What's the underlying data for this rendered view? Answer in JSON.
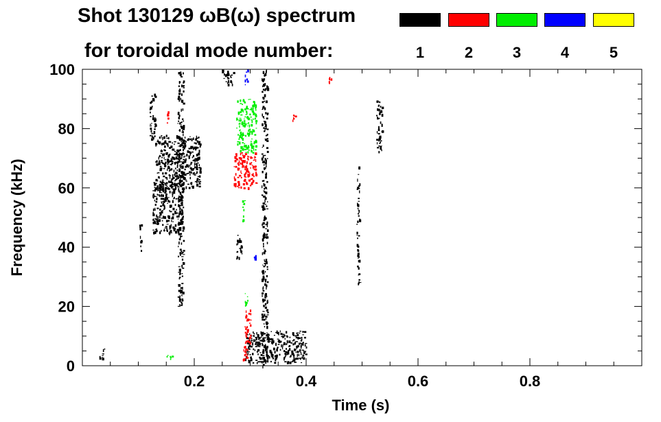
{
  "chart_data": {
    "type": "scatter",
    "title_line_1": "Shot 130129 ωB(ω) spectrum",
    "title_line_2": "for toroidal mode number:",
    "xlabel": "Time (s)",
    "ylabel": "Frequency (kHz)",
    "xlim": [
      0.0,
      1.0
    ],
    "ylim": [
      0,
      100
    ],
    "x_ticks": [
      0.2,
      0.4,
      0.6,
      0.8
    ],
    "x_tick_labels": [
      "0.2",
      "0.4",
      "0.6",
      "0.8"
    ],
    "y_ticks": [
      0,
      20,
      40,
      60,
      80,
      100
    ],
    "y_tick_labels": [
      "0",
      "20",
      "40",
      "60",
      "80",
      "100"
    ],
    "grid": false,
    "legend_position": "top-right",
    "legend": [
      {
        "label": "1",
        "color": "#000000"
      },
      {
        "label": "2",
        "color": "#ff0000"
      },
      {
        "label": "3",
        "color": "#00ee00"
      },
      {
        "label": "4",
        "color": "#0000ff"
      },
      {
        "label": "5",
        "color": "#ffff00"
      }
    ],
    "series": [
      {
        "mode": 1,
        "color": "#000000",
        "blobs": [
          [
            0.13,
            0.21,
            60,
            78
          ],
          [
            0.125,
            0.18,
            45,
            62
          ],
          [
            0.17,
            0.18,
            20,
            100
          ],
          [
            0.1,
            0.105,
            39,
            48
          ],
          [
            0.29,
            0.4,
            1,
            12
          ],
          [
            0.32,
            0.33,
            0,
            100
          ],
          [
            0.275,
            0.285,
            36,
            45
          ],
          [
            0.525,
            0.535,
            72,
            90
          ],
          [
            0.49,
            0.495,
            28,
            68
          ],
          [
            0.12,
            0.13,
            76,
            92
          ],
          [
            0.25,
            0.27,
            95,
            100
          ],
          [
            0.03,
            0.04,
            2,
            6
          ]
        ]
      },
      {
        "mode": 2,
        "color": "#ff0000",
        "blobs": [
          [
            0.27,
            0.31,
            60,
            72
          ],
          [
            0.29,
            0.3,
            6,
            20
          ],
          [
            0.285,
            0.295,
            2,
            8
          ],
          [
            0.15,
            0.155,
            82,
            86
          ],
          [
            0.44,
            0.445,
            95,
            98
          ],
          [
            0.375,
            0.38,
            83,
            85
          ]
        ]
      },
      {
        "mode": 3,
        "color": "#00ee00",
        "blobs": [
          [
            0.275,
            0.31,
            72,
            90
          ],
          [
            0.29,
            0.295,
            20,
            26
          ],
          [
            0.285,
            0.29,
            48,
            56
          ],
          [
            0.15,
            0.16,
            2,
            4
          ]
        ]
      },
      {
        "mode": 4,
        "color": "#0000ff",
        "blobs": [
          [
            0.29,
            0.295,
            94,
            100
          ],
          [
            0.305,
            0.31,
            36,
            38
          ]
        ]
      }
    ]
  }
}
